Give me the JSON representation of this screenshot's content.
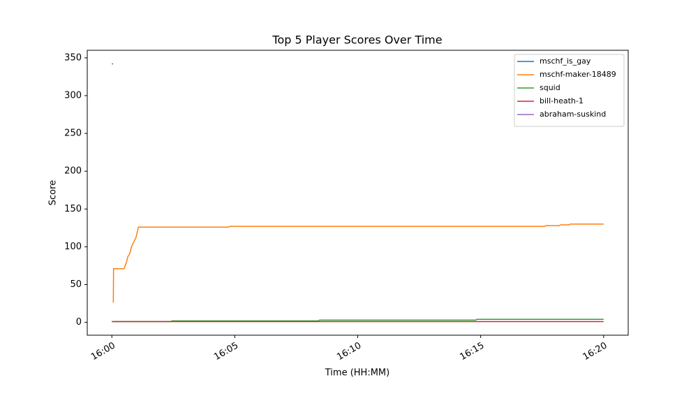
{
  "chart_data": {
    "type": "line",
    "title": "Top 5 Player Scores Over Time",
    "xlabel": "Time (HH:MM)",
    "ylabel": "Score",
    "xlim": [
      -1,
      21
    ],
    "ylim": [
      -17,
      360
    ],
    "xticks": [
      {
        "value": 0,
        "label": "16:00"
      },
      {
        "value": 5,
        "label": "16:05"
      },
      {
        "value": 10,
        "label": "16:10"
      },
      {
        "value": 15,
        "label": "16:15"
      },
      {
        "value": 20,
        "label": "16:20"
      }
    ],
    "yticks": [
      0,
      50,
      100,
      150,
      200,
      250,
      300,
      350
    ],
    "grid": false,
    "legend": "upper right",
    "series": [
      {
        "name": "mschf_is_gay",
        "color": "#1f77b4",
        "x": [
          0,
          0.05
        ],
        "values": [
          342,
          342
        ]
      },
      {
        "name": "mschf-maker-18489",
        "color": "#ff7f0e",
        "x": [
          0.06,
          0.07,
          0.5,
          0.6,
          0.65,
          0.72,
          0.8,
          0.9,
          0.98,
          1.08,
          4.75,
          4.8,
          17.6,
          17.65,
          18.2,
          18.25,
          18.6,
          18.65,
          20
        ],
        "values": [
          26,
          71,
          71,
          80,
          87,
          90,
          100,
          107,
          112,
          126,
          126,
          127,
          127,
          128,
          128,
          129,
          129,
          130,
          130
        ]
      },
      {
        "name": "squid",
        "color": "#2ca02c",
        "x": [
          0,
          2.4,
          2.45,
          8.4,
          8.45,
          14.8,
          14.85,
          20
        ],
        "values": [
          1,
          1,
          2,
          2,
          3,
          3,
          4,
          4
        ]
      },
      {
        "name": "bill-heath-1",
        "color": "#d62728",
        "x": [
          0,
          20
        ],
        "values": [
          1,
          1
        ]
      },
      {
        "name": "abraham-suskind",
        "color": "#9467bd",
        "x": [
          0,
          0.05
        ],
        "values": [
          1,
          1
        ]
      }
    ]
  }
}
